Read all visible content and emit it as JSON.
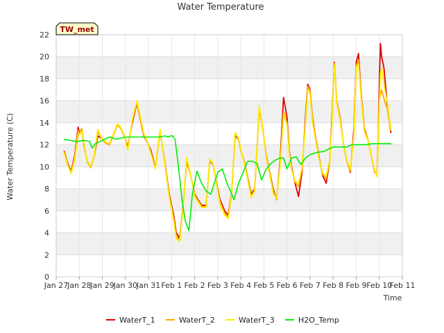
{
  "chart_data": {
    "type": "line",
    "title": "Water Temperature",
    "xlabel": "Time",
    "ylabel": "Water Temperature (C)",
    "site_label": "TW_met",
    "ylim": [
      0,
      22
    ],
    "yticks": [
      0,
      2,
      4,
      6,
      8,
      10,
      12,
      14,
      16,
      18,
      20,
      22
    ],
    "xlim": [
      0,
      15
    ],
    "xticks": [
      0,
      1,
      2,
      3,
      4,
      5,
      6,
      7,
      8,
      9,
      10,
      11,
      12,
      13,
      14,
      15
    ],
    "xtick_labels": [
      "Jan 27",
      "Jan 28",
      "Jan 29",
      "Jan 30",
      "Jan 31",
      "Feb 1",
      "Feb 2",
      "Feb 3",
      "Feb 4",
      "Feb 5",
      "Feb 6",
      "Feb 7",
      "Feb 8",
      "Feb 9",
      "Feb 10",
      "Feb 11"
    ],
    "grid": "horizontal bands",
    "legend_position": "bottom",
    "series": [
      {
        "name": "WaterT_1",
        "color": "#dd0000",
        "x": [
          0.35,
          0.5,
          0.65,
          0.8,
          0.95,
          1.0,
          1.1,
          1.2,
          1.35,
          1.5,
          1.65,
          1.8,
          1.95,
          2.1,
          2.3,
          2.5,
          2.65,
          2.8,
          2.95,
          3.1,
          3.3,
          3.5,
          3.65,
          3.8,
          3.95,
          4.1,
          4.3,
          4.5,
          4.7,
          4.9,
          5.0,
          5.1,
          5.2,
          5.35,
          5.5,
          5.65,
          5.8,
          6.0,
          6.15,
          6.3,
          6.5,
          6.65,
          6.8,
          6.95,
          7.1,
          7.3,
          7.45,
          7.6,
          7.75,
          7.9,
          8.0,
          8.15,
          8.3,
          8.45,
          8.6,
          8.8,
          8.95,
          9.1,
          9.25,
          9.4,
          9.55,
          9.7,
          9.85,
          10.0,
          10.1,
          10.2,
          10.35,
          10.5,
          10.65,
          10.8,
          10.9,
          11.0,
          11.1,
          11.25,
          11.4,
          11.55,
          11.7,
          11.85,
          11.95,
          12.05,
          12.15,
          12.3,
          12.45,
          12.6,
          12.75,
          12.9,
          13.0,
          13.1,
          13.2,
          13.35,
          13.5,
          13.65,
          13.8,
          13.9,
          13.95,
          14.0,
          14.05,
          14.1,
          14.2,
          14.35,
          14.5
        ],
        "y": [
          11.4,
          10.3,
          9.6,
          11.0,
          13.6,
          13.1,
          13.4,
          12.0,
          10.5,
          10.0,
          11.0,
          12.8,
          12.6,
          12.2,
          12.0,
          13.0,
          13.8,
          13.5,
          12.8,
          11.8,
          14.0,
          15.8,
          14.3,
          12.8,
          12.2,
          11.5,
          9.9,
          13.2,
          10.5,
          7.5,
          6.5,
          5.5,
          4.0,
          3.5,
          6.5,
          10.5,
          9.5,
          7.5,
          7.0,
          6.5,
          6.5,
          10.5,
          10.2,
          8.5,
          7.0,
          6.0,
          5.6,
          7.5,
          12.8,
          12.5,
          11.5,
          10.5,
          9.0,
          7.5,
          8.0,
          15.3,
          13.5,
          11.0,
          9.5,
          8.0,
          7.0,
          10.5,
          16.3,
          14.5,
          11.5,
          10.0,
          8.5,
          7.3,
          9.5,
          14.5,
          17.5,
          17.0,
          14.5,
          12.5,
          10.8,
          9.2,
          8.5,
          10.5,
          14.5,
          19.5,
          16.0,
          14.5,
          12.0,
          10.5,
          9.5,
          13.5,
          19.5,
          20.3,
          17.0,
          13.5,
          12.5,
          11.0,
          9.5,
          9.3,
          12.5,
          17.5,
          21.2,
          20.0,
          19.0,
          15.5,
          13.1
        ]
      },
      {
        "name": "WaterT_2",
        "color": "#ffa500",
        "x": [
          0.35,
          0.5,
          0.65,
          0.8,
          0.95,
          1.0,
          1.1,
          1.2,
          1.35,
          1.5,
          1.65,
          1.8,
          1.95,
          2.1,
          2.3,
          2.5,
          2.65,
          2.8,
          2.95,
          3.1,
          3.3,
          3.5,
          3.65,
          3.8,
          3.95,
          4.1,
          4.3,
          4.5,
          4.7,
          4.9,
          5.0,
          5.1,
          5.2,
          5.35,
          5.5,
          5.65,
          5.8,
          6.0,
          6.15,
          6.3,
          6.5,
          6.65,
          6.8,
          6.95,
          7.1,
          7.3,
          7.45,
          7.6,
          7.75,
          7.9,
          8.0,
          8.15,
          8.3,
          8.45,
          8.6,
          8.8,
          8.95,
          9.1,
          9.25,
          9.4,
          9.55,
          9.7,
          9.85,
          10.0,
          10.1,
          10.2,
          10.35,
          10.5,
          10.65,
          10.8,
          10.9,
          11.0,
          11.1,
          11.25,
          11.4,
          11.55,
          11.7,
          11.85,
          11.95,
          12.05,
          12.15,
          12.3,
          12.45,
          12.6,
          12.75,
          12.9,
          13.0,
          13.1,
          13.2,
          13.35,
          13.5,
          13.65,
          13.8,
          13.9,
          13.95,
          14.0,
          14.05,
          14.1,
          14.2,
          14.35,
          14.5
        ],
        "y": [
          11.3,
          10.2,
          9.5,
          10.8,
          13.3,
          13.0,
          13.5,
          12.1,
          10.4,
          9.9,
          11.0,
          13.2,
          12.6,
          12.2,
          12.0,
          13.0,
          13.8,
          13.5,
          12.8,
          11.6,
          14.2,
          15.9,
          14.4,
          12.9,
          12.2,
          11.3,
          9.8,
          13.3,
          10.4,
          7.3,
          6.3,
          5.2,
          3.7,
          3.3,
          6.4,
          10.7,
          9.5,
          7.4,
          6.9,
          6.4,
          6.4,
          10.6,
          10.2,
          8.4,
          6.8,
          5.8,
          5.4,
          7.4,
          13.0,
          12.5,
          11.5,
          10.4,
          8.9,
          7.3,
          7.9,
          15.4,
          13.5,
          10.9,
          9.4,
          7.8,
          7.0,
          10.2,
          15.0,
          14.0,
          11.3,
          9.8,
          8.6,
          8.2,
          9.8,
          14.0,
          17.3,
          16.9,
          14.3,
          12.4,
          10.7,
          9.3,
          8.9,
          10.5,
          14.0,
          19.4,
          16.0,
          14.4,
          12.0,
          10.5,
          9.6,
          13.0,
          19.2,
          19.7,
          16.8,
          13.4,
          12.5,
          11.0,
          9.6,
          9.3,
          12.3,
          16.0,
          16.5,
          17.0,
          16.2,
          15.2,
          13.3
        ]
      },
      {
        "name": "WaterT_3",
        "color": "#ffee00",
        "x": [
          0.35,
          0.5,
          0.65,
          0.8,
          0.95,
          1.0,
          1.1,
          1.2,
          1.35,
          1.5,
          1.65,
          1.8,
          1.95,
          2.1,
          2.3,
          2.5,
          2.65,
          2.8,
          2.95,
          3.1,
          3.3,
          3.5,
          3.65,
          3.8,
          3.95,
          4.1,
          4.3,
          4.5,
          4.7,
          4.9,
          5.0,
          5.1,
          5.2,
          5.35,
          5.5,
          5.65,
          5.8,
          6.0,
          6.15,
          6.3,
          6.5,
          6.65,
          6.8,
          6.95,
          7.1,
          7.3,
          7.45,
          7.6,
          7.75,
          7.9,
          8.0,
          8.15,
          8.3,
          8.45,
          8.6,
          8.8,
          8.95,
          9.1,
          9.25,
          9.4,
          9.55,
          9.7,
          9.85,
          10.0,
          10.1,
          10.2,
          10.35,
          10.5,
          10.65,
          10.8,
          10.9,
          11.0,
          11.1,
          11.25,
          11.4,
          11.55,
          11.7,
          11.85,
          11.95,
          12.05,
          12.15,
          12.3,
          12.45,
          12.6,
          12.75,
          12.9,
          13.0,
          13.1,
          13.2,
          13.35,
          13.5,
          13.65,
          13.8,
          13.9,
          13.95,
          14.0,
          14.05,
          14.1,
          14.2,
          14.35,
          14.5
        ],
        "y": [
          11.2,
          10.1,
          9.4,
          10.6,
          12.8,
          12.9,
          13.2,
          12.2,
          10.5,
          10.0,
          11.1,
          13.4,
          12.7,
          12.3,
          12.1,
          13.1,
          13.9,
          13.6,
          12.9,
          11.5,
          14.3,
          16.0,
          14.5,
          13.0,
          12.3,
          11.2,
          9.8,
          13.4,
          10.3,
          7.2,
          6.1,
          5.0,
          3.5,
          3.2,
          6.3,
          10.8,
          9.6,
          7.3,
          6.8,
          6.3,
          6.3,
          10.7,
          10.3,
          8.3,
          6.6,
          5.6,
          5.3,
          7.3,
          13.1,
          12.6,
          11.6,
          10.4,
          8.8,
          7.2,
          7.8,
          15.5,
          13.6,
          10.8,
          9.3,
          7.6,
          7.1,
          10.0,
          14.8,
          13.8,
          11.2,
          9.7,
          8.7,
          8.5,
          9.9,
          13.8,
          17.0,
          16.6,
          14.1,
          12.3,
          10.6,
          9.4,
          9.2,
          10.6,
          13.8,
          19.2,
          15.8,
          14.2,
          12.0,
          10.6,
          9.7,
          12.8,
          19.0,
          19.3,
          16.5,
          13.2,
          12.4,
          11.0,
          9.6,
          9.1,
          12.0,
          15.5,
          18.5,
          19.0,
          17.5,
          15.8,
          13.4
        ]
      },
      {
        "name": "H2O_Temp",
        "color": "#00ee00",
        "x": [
          0.35,
          0.6,
          0.9,
          1.2,
          1.45,
          1.55,
          1.7,
          2.0,
          2.3,
          2.6,
          3.0,
          3.5,
          4.0,
          4.5,
          4.7,
          4.85,
          4.95,
          5.05,
          5.15,
          5.3,
          5.45,
          5.6,
          5.75,
          5.9,
          6.1,
          6.3,
          6.5,
          6.7,
          6.85,
          7.0,
          7.2,
          7.4,
          7.55,
          7.7,
          7.9,
          8.1,
          8.3,
          8.5,
          8.7,
          8.9,
          9.1,
          9.3,
          9.5,
          9.7,
          9.85,
          10.0,
          10.2,
          10.4,
          10.6,
          10.8,
          11.0,
          11.3,
          11.6,
          11.8,
          12.0,
          12.3,
          12.6,
          12.8,
          13.1,
          13.4,
          13.7,
          14.0,
          14.3,
          14.5
        ],
        "y": [
          12.5,
          12.4,
          12.3,
          12.4,
          12.3,
          11.7,
          12.1,
          12.4,
          12.7,
          12.5,
          12.7,
          12.7,
          12.7,
          12.7,
          12.8,
          12.7,
          12.8,
          12.8,
          12.5,
          10.0,
          7.0,
          5.0,
          4.2,
          7.5,
          9.6,
          8.5,
          7.8,
          7.5,
          8.5,
          9.5,
          9.8,
          8.5,
          7.8,
          7.0,
          8.5,
          9.5,
          10.5,
          10.5,
          10.3,
          8.8,
          9.8,
          10.3,
          10.6,
          10.8,
          10.8,
          9.8,
          10.8,
          10.9,
          10.2,
          10.8,
          11.1,
          11.3,
          11.4,
          11.6,
          11.8,
          11.8,
          11.8,
          12.0,
          12.0,
          12.0,
          12.1,
          12.1,
          12.1,
          12.1
        ]
      }
    ]
  }
}
